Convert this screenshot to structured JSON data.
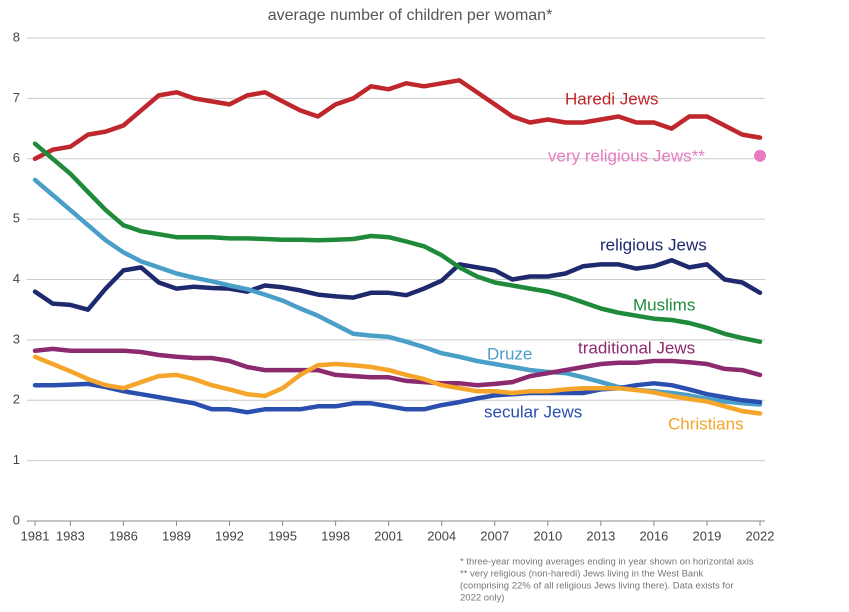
{
  "chart_data": {
    "type": "line",
    "title": "average number of children per woman*",
    "x": [
      1981,
      1982,
      1983,
      1984,
      1985,
      1986,
      1987,
      1988,
      1989,
      1990,
      1991,
      1992,
      1993,
      1994,
      1995,
      1996,
      1997,
      1998,
      1999,
      2000,
      2001,
      2002,
      2003,
      2004,
      2005,
      2006,
      2007,
      2008,
      2009,
      2010,
      2011,
      2012,
      2013,
      2014,
      2015,
      2016,
      2017,
      2018,
      2019,
      2020,
      2021,
      2022
    ],
    "xlim": [
      1981,
      2022
    ],
    "xticks": [
      1981,
      1983,
      1986,
      1989,
      1992,
      1995,
      1998,
      2001,
      2004,
      2007,
      2010,
      2013,
      2016,
      2019,
      2022
    ],
    "ylim": [
      0,
      8
    ],
    "yticks": [
      0,
      1,
      2,
      3,
      4,
      5,
      6,
      7,
      8
    ],
    "grid": true,
    "series": [
      {
        "name": "Haredi Jews",
        "color": "#c0272d",
        "values": [
          6.0,
          6.15,
          6.2,
          6.4,
          6.45,
          6.55,
          6.8,
          7.05,
          7.1,
          7.0,
          6.95,
          6.9,
          7.05,
          7.1,
          6.95,
          6.8,
          6.7,
          6.9,
          7.0,
          7.2,
          7.15,
          7.25,
          7.2,
          7.25,
          7.3,
          7.1,
          6.9,
          6.7,
          6.6,
          6.65,
          6.6,
          6.6,
          6.65,
          6.7,
          6.6,
          6.6,
          6.5,
          6.7,
          6.7,
          6.55,
          6.4,
          6.35
        ]
      },
      {
        "name": "very religious Jews**",
        "color": "#e77bbf",
        "values": [
          null,
          null,
          null,
          null,
          null,
          null,
          null,
          null,
          null,
          null,
          null,
          null,
          null,
          null,
          null,
          null,
          null,
          null,
          null,
          null,
          null,
          null,
          null,
          null,
          null,
          null,
          null,
          null,
          null,
          null,
          null,
          null,
          null,
          null,
          null,
          null,
          null,
          null,
          null,
          null,
          null,
          6.05
        ]
      },
      {
        "name": "religious Jews",
        "color": "#1f2a6e",
        "values": [
          3.8,
          3.6,
          3.58,
          3.5,
          3.85,
          4.15,
          4.2,
          3.95,
          3.85,
          3.88,
          3.86,
          3.85,
          3.8,
          3.9,
          3.87,
          3.82,
          3.75,
          3.72,
          3.7,
          3.78,
          3.78,
          3.74,
          3.85,
          3.98,
          4.25,
          4.2,
          4.15,
          4.0,
          4.05,
          4.05,
          4.1,
          4.22,
          4.25,
          4.25,
          4.18,
          4.22,
          4.32,
          4.2,
          4.25,
          4.0,
          3.95,
          3.78
        ]
      },
      {
        "name": "Muslims",
        "color": "#1e8a3a",
        "values": [
          6.25,
          6.0,
          5.75,
          5.45,
          5.15,
          4.9,
          4.8,
          4.75,
          4.7,
          4.7,
          4.7,
          4.68,
          4.68,
          4.67,
          4.66,
          4.66,
          4.65,
          4.66,
          4.67,
          4.72,
          4.7,
          4.63,
          4.55,
          4.4,
          4.2,
          4.05,
          3.95,
          3.9,
          3.85,
          3.8,
          3.72,
          3.62,
          3.52,
          3.45,
          3.4,
          3.35,
          3.33,
          3.28,
          3.2,
          3.1,
          3.03,
          2.97
        ]
      },
      {
        "name": "Druze",
        "color": "#4a9fc9",
        "values": [
          5.65,
          5.4,
          5.15,
          4.9,
          4.65,
          4.45,
          4.3,
          4.2,
          4.1,
          4.03,
          3.97,
          3.9,
          3.84,
          3.75,
          3.65,
          3.52,
          3.4,
          3.25,
          3.1,
          3.07,
          3.05,
          2.97,
          2.88,
          2.78,
          2.72,
          2.65,
          2.6,
          2.55,
          2.5,
          2.47,
          2.45,
          2.38,
          2.3,
          2.22,
          2.17,
          2.15,
          2.12,
          2.08,
          2.02,
          1.98,
          1.95,
          1.93
        ]
      },
      {
        "name": "traditional Jews",
        "color": "#8b2a6e",
        "values": [
          2.82,
          2.85,
          2.82,
          2.82,
          2.82,
          2.82,
          2.8,
          2.75,
          2.72,
          2.7,
          2.7,
          2.65,
          2.55,
          2.5,
          2.5,
          2.5,
          2.5,
          2.42,
          2.4,
          2.38,
          2.38,
          2.32,
          2.3,
          2.28,
          2.28,
          2.25,
          2.27,
          2.3,
          2.4,
          2.45,
          2.5,
          2.55,
          2.6,
          2.62,
          2.62,
          2.65,
          2.65,
          2.63,
          2.6,
          2.52,
          2.5,
          2.42
        ]
      },
      {
        "name": "secular Jews",
        "color": "#2a4fae",
        "values": [
          2.25,
          2.25,
          2.26,
          2.27,
          2.22,
          2.15,
          2.1,
          2.05,
          2.0,
          1.95,
          1.85,
          1.85,
          1.8,
          1.85,
          1.85,
          1.85,
          1.9,
          1.9,
          1.95,
          1.95,
          1.9,
          1.85,
          1.85,
          1.92,
          1.97,
          2.03,
          2.08,
          2.1,
          2.12,
          2.12,
          2.12,
          2.12,
          2.18,
          2.2,
          2.25,
          2.28,
          2.25,
          2.18,
          2.1,
          2.05,
          2.0,
          1.97
        ]
      },
      {
        "name": "Christians",
        "color": "#f4a52a",
        "values": [
          2.72,
          2.6,
          2.48,
          2.35,
          2.25,
          2.2,
          2.3,
          2.4,
          2.42,
          2.35,
          2.25,
          2.18,
          2.1,
          2.07,
          2.2,
          2.42,
          2.58,
          2.6,
          2.58,
          2.55,
          2.5,
          2.42,
          2.35,
          2.25,
          2.2,
          2.15,
          2.15,
          2.12,
          2.15,
          2.15,
          2.18,
          2.2,
          2.2,
          2.2,
          2.17,
          2.13,
          2.07,
          2.02,
          1.98,
          1.9,
          1.82,
          1.78
        ]
      }
    ],
    "notes": [
      "* three-year moving averages ending in year shown on horizontal axis",
      "** very religious (non-haredi) Jews living in the West Bank",
      "(comprising 22% of all religious Jews living there). Data exists for",
      "2022 only)"
    ]
  }
}
